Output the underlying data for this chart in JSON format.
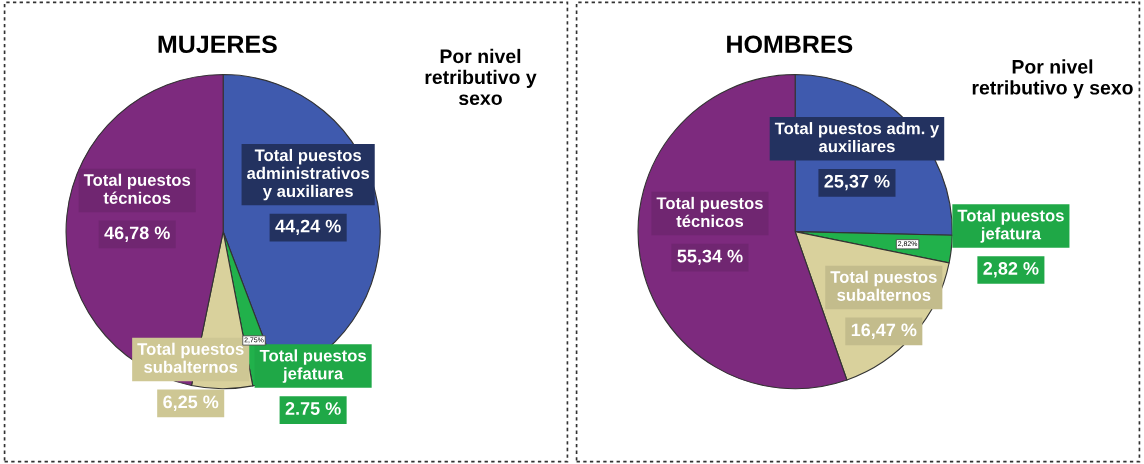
{
  "chart_data": [
    {
      "type": "pie",
      "title": "MUJERES",
      "subtitle": "Por nivel\nretributivo y\nsexo",
      "categories": [
        "Total puestos\nadministrativos\ny auxiliares",
        "Total puestos\njefatura",
        "Total puestos\nsubalternos",
        "Total puestos\ntécnicos"
      ],
      "values": [
        44.24,
        2.75,
        6.25,
        46.78
      ],
      "colors": [
        "#3f5aae",
        "#21b14b",
        "#d9d19c",
        "#7d2a7e"
      ],
      "value_labels": [
        "44,24 %",
        "2.75 %",
        "6,25 %",
        "46,78 %"
      ],
      "annotations": [
        "2,75%"
      ]
    },
    {
      "type": "pie",
      "title": "HOMBRES",
      "subtitle": "Por nivel\nretributivo y sexo",
      "categories": [
        "Total puestos adm. y\nauxiliares",
        "Total puestos\njefatura",
        "Total puestos\nsubalternos",
        "Total puestos\ntécnicos"
      ],
      "values": [
        25.37,
        2.82,
        16.47,
        55.34
      ],
      "colors": [
        "#3f5aae",
        "#21b14b",
        "#d9d19c",
        "#7d2a7e"
      ],
      "value_labels": [
        "25,37 %",
        "2,82 %",
        "16,47 %",
        "55,34 %"
      ],
      "annotations": [
        "2,82%"
      ]
    }
  ]
}
